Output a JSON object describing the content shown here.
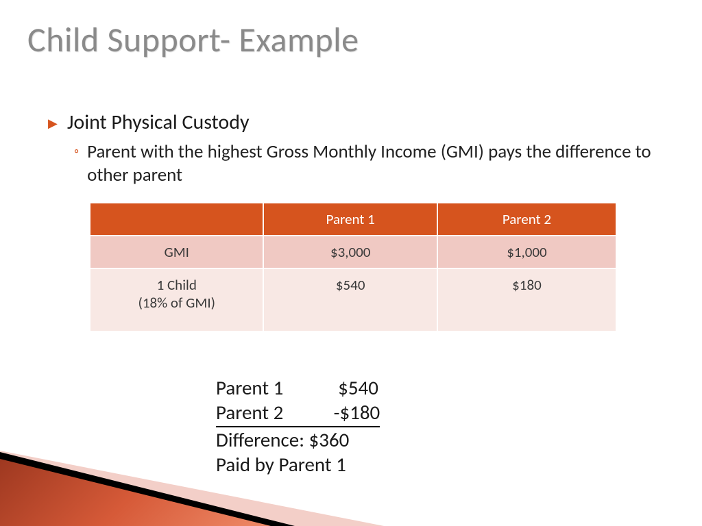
{
  "title": "Child Support- Example",
  "bullet": {
    "main": "Joint Physical Custody",
    "sub": "Parent with the highest Gross Monthly Income (GMI) pays the difference to other parent"
  },
  "table": {
    "columns": [
      "",
      "Parent 1",
      "Parent 2"
    ],
    "rows": [
      {
        "label": "GMI",
        "p1": "$3,000",
        "p2": "$1,000"
      },
      {
        "label": "1 Child\n(18% of GMI)",
        "p1": "$540",
        "p2": "$180"
      }
    ],
    "header_bg": "#d6541e",
    "header_fg": "#ffffff",
    "row1_bg": "#f0c9c3",
    "row2_bg": "#f8e8e4",
    "cell_fontsize": 21
  },
  "calc": {
    "line1_label": "Parent 1",
    "line1_val": "$540",
    "line2_label": "Parent 2",
    "line2_val": "-$180",
    "line3": "Difference: $360",
    "line4": "Paid by Parent 1"
  },
  "colors": {
    "title": "#8a8a8a",
    "accent": "#d6541e",
    "body_text": "#1a1a1a",
    "wedge_pink": "#f3cfc8",
    "wedge_black": "#000000",
    "wedge_red_start": "#9e3820",
    "wedge_red_end": "#ef8a68"
  }
}
